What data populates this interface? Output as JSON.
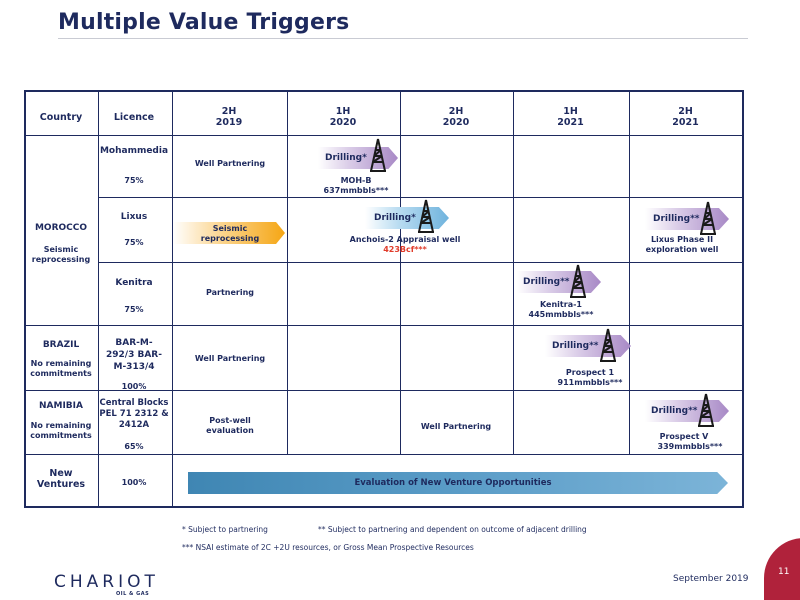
{
  "title": "Multiple Value Triggers",
  "headers": {
    "country": "Country",
    "licence": "Licence",
    "periods": [
      {
        "half": "2H",
        "year": "2019"
      },
      {
        "half": "1H",
        "year": "2020"
      },
      {
        "half": "2H",
        "year": "2020"
      },
      {
        "half": "1H",
        "year": "2021"
      },
      {
        "half": "2H",
        "year": "2021"
      }
    ]
  },
  "countries": {
    "morocco": {
      "name": "MOROCCO",
      "note": "Seismic reprocessing"
    },
    "brazil": {
      "name": "BRAZIL",
      "note": "No remaining commitments"
    },
    "namibia": {
      "name": "NAMIBIA",
      "note": "No remaining commitments"
    },
    "new_ventures": {
      "name": "New Ventures"
    }
  },
  "licences": {
    "mohammedia": {
      "name": "Mohammedia",
      "share": "75%"
    },
    "lixus": {
      "name": "Lixus",
      "share": "75%"
    },
    "kenitra": {
      "name": "Kenitra",
      "share": "75%"
    },
    "brazil": {
      "name": "BAR-M-292/3 BAR-M-313/4",
      "share": "100%"
    },
    "namibia": {
      "name": "Central Blocks PEL 71 2312 & 2412A",
      "share": "65%"
    },
    "new_ventures": {
      "share": "100%"
    }
  },
  "activities": {
    "moh_partnering": "Well Partnering",
    "moh_drill": "Drilling*",
    "moh_target": "MOH-B",
    "moh_volume": "637mmbbls***",
    "lixus_seismic": "Seismic reprocessing",
    "lixus_drill": "Drilling*",
    "lixus_target": "Anchois-2 Appraisal well",
    "lixus_volume": "423Bcf***",
    "lixus_drill2": "Drilling**",
    "lixus_target2": "Lixus Phase II exploration well",
    "kenitra_partnering": "Partnering",
    "kenitra_drill": "Drilling**",
    "kenitra_target": "Kenitra-1",
    "kenitra_volume": "445mmbbls***",
    "brazil_partnering": "Well Partnering",
    "brazil_drill": "Drilling**",
    "brazil_target": "Prospect 1",
    "brazil_volume": "911mmbbls***",
    "namibia_post_well": "Post-well evaluation",
    "namibia_partnering": "Well Partnering",
    "namibia_drill": "Drilling**",
    "namibia_target": "Prospect V",
    "namibia_volume": "339mmbbls***",
    "new_ventures_eval": "Evaluation of New Venture Opportunities"
  },
  "footnotes": {
    "f1": "* Subject to partnering",
    "f2": "** Subject to partnering and dependent on outcome of adjacent drilling",
    "f3": "*** NSAI estimate of 2C +2U resources, or Gross Mean Prospective Resources"
  },
  "footer": {
    "logo": "CHARIOT",
    "logo_sub": "OIL & GAS",
    "date": "September 2019",
    "page": "11"
  },
  "colors": {
    "navy": "#1e2a5e",
    "seismic_orange": "#f5a614",
    "drilling_purple": "#a889c6",
    "drilling_blue": "#6fb3dd",
    "evaluation_blue": "#4a8fbd",
    "volume_red": "#e03b2a",
    "page_tab": "#b0223b"
  },
  "icons": {
    "rig": "drilling-rig-icon"
  }
}
